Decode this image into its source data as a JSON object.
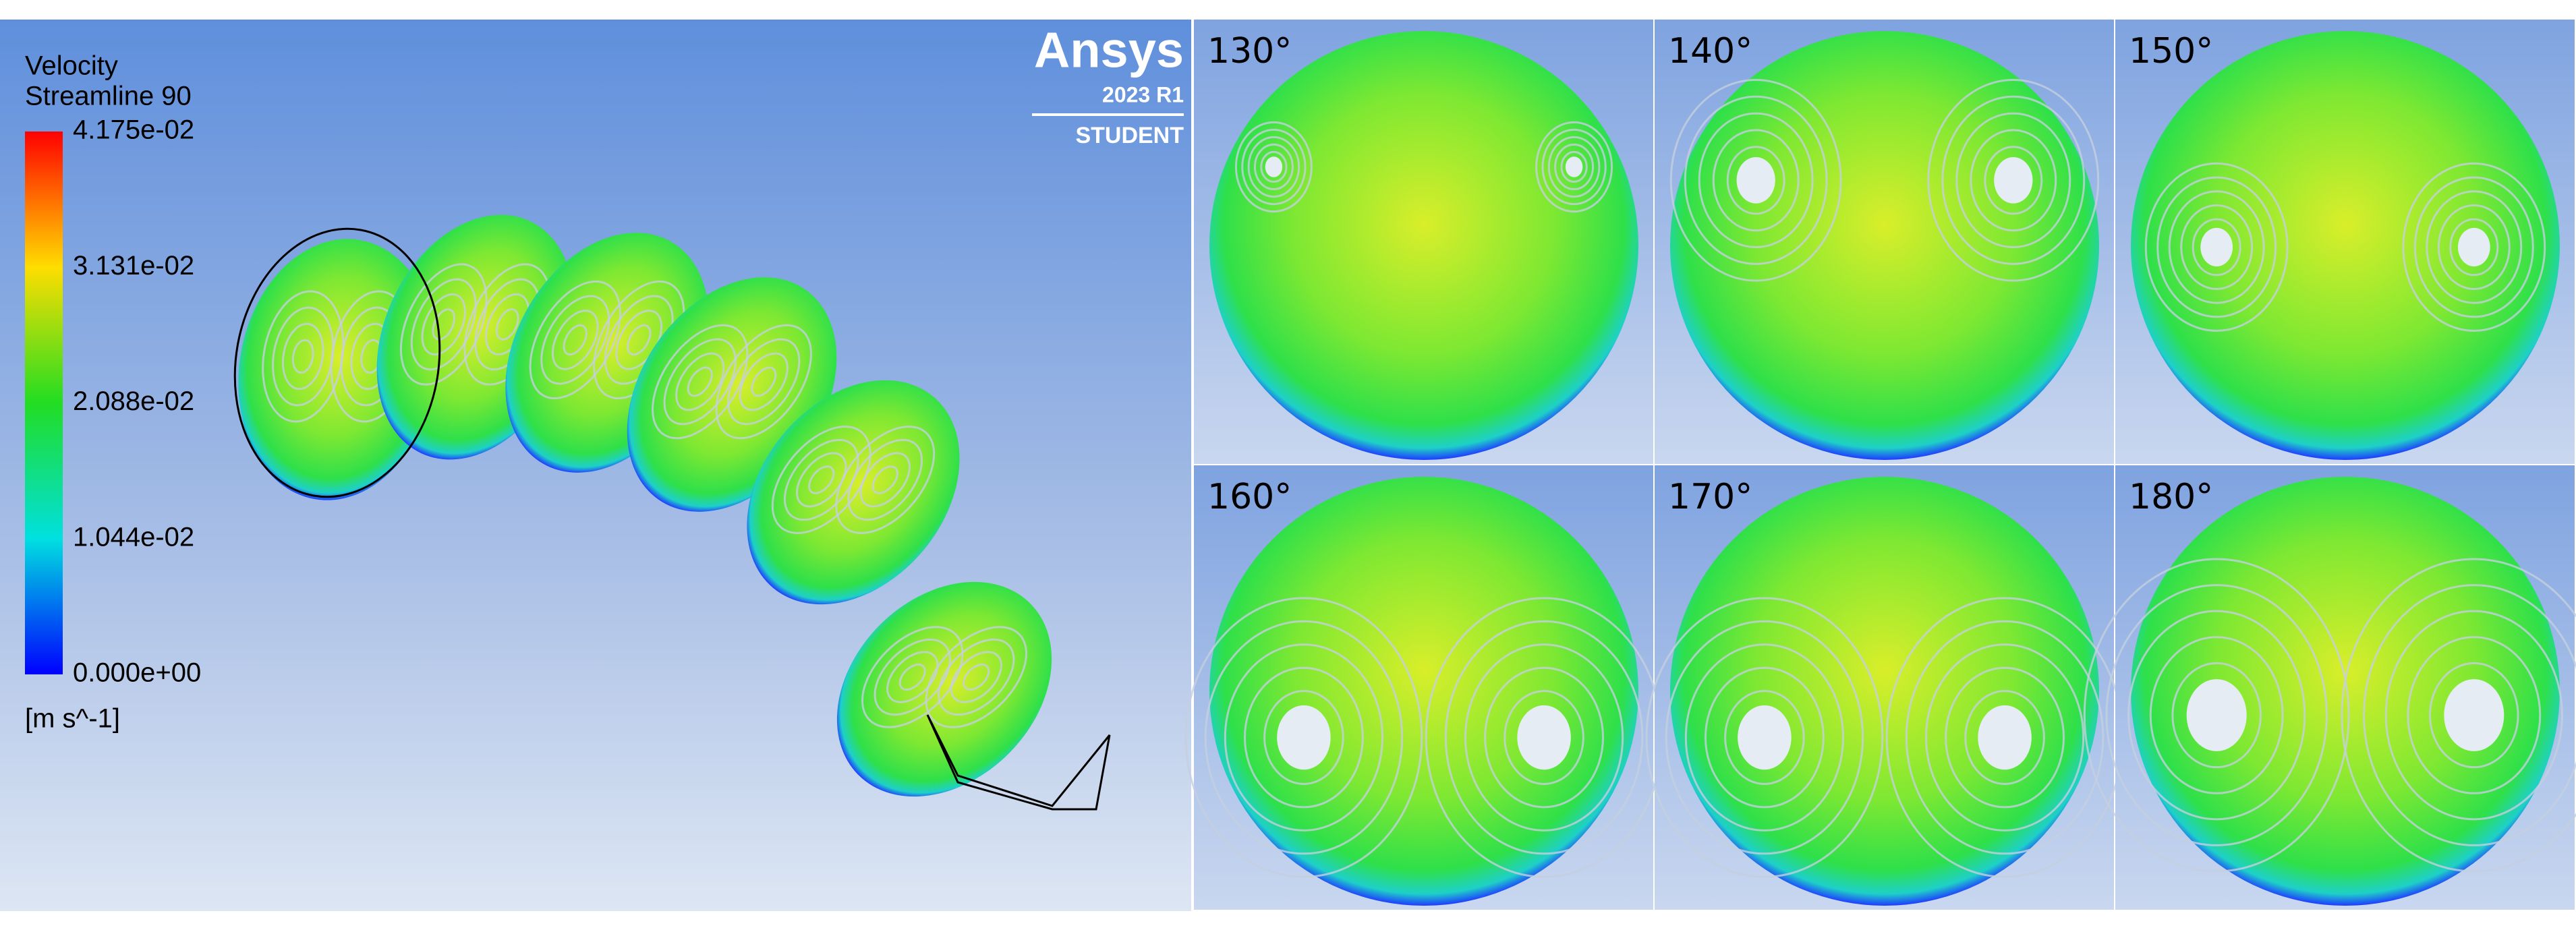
{
  "legend": {
    "title": "Velocity",
    "subtitle": "Streamline 90",
    "labels": [
      "4.175e-02",
      "3.131e-02",
      "2.088e-02",
      "1.044e-02",
      "0.000e+00"
    ],
    "unit": "[m s^-1]"
  },
  "logo": {
    "name": "Ansys",
    "version": "2023 R1",
    "edition": "STUDENT"
  },
  "panels": [
    {
      "label": "130°"
    },
    {
      "label": "140°"
    },
    {
      "label": "150°"
    },
    {
      "label": "160°"
    },
    {
      "label": "170°"
    },
    {
      "label": "180°"
    }
  ]
}
